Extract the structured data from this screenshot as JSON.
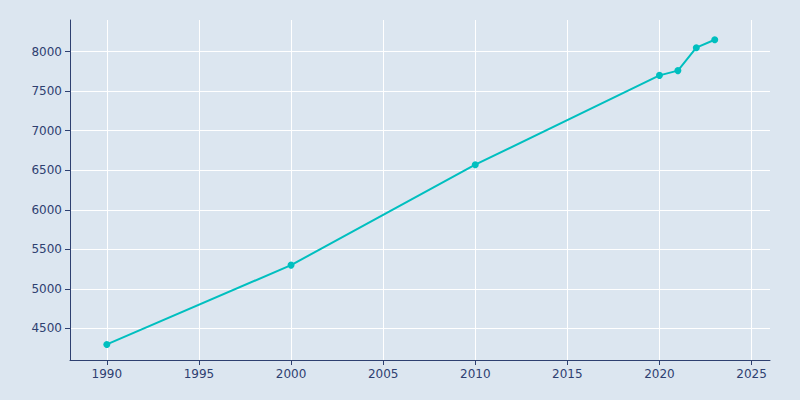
{
  "chart_data": {
    "type": "line",
    "x": [
      1990,
      2000,
      2010,
      2020,
      2021,
      2022,
      2023
    ],
    "values": [
      4297,
      5300,
      6570,
      7700,
      7760,
      8050,
      8150
    ],
    "color": "#00BFBF",
    "marker": "circle",
    "xlim": [
      1988,
      2026
    ],
    "ylim": [
      4100,
      8400
    ],
    "xticks": [
      1990,
      1995,
      2000,
      2005,
      2010,
      2015,
      2020,
      2025
    ],
    "yticks": [
      4500,
      5000,
      5500,
      6000,
      6500,
      7000,
      7500,
      8000
    ],
    "grid": true
  }
}
